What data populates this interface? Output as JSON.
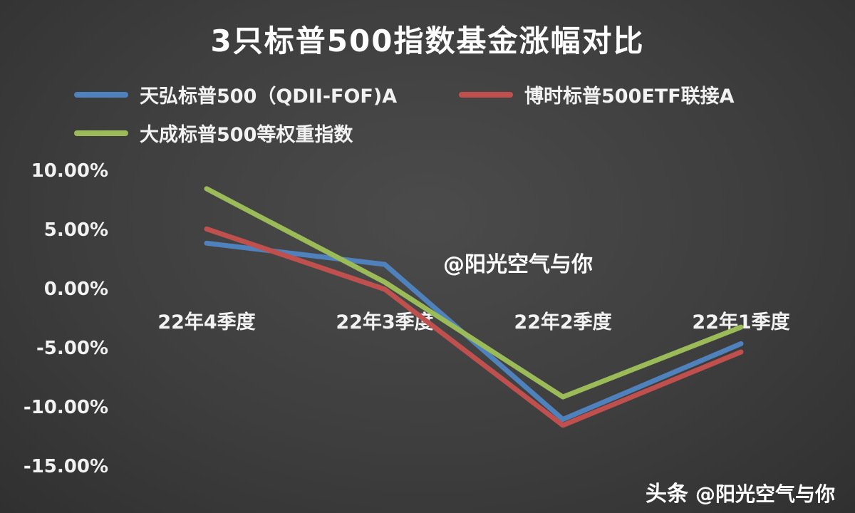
{
  "title": "3只标普500指数基金涨幅对比",
  "watermark_center": "@阳光空气与你",
  "footer": {
    "brand": "头条",
    "handle": "@阳光空气与你"
  },
  "chart_data": {
    "type": "line",
    "title": "3只标普500指数基金涨幅对比",
    "categories": [
      "22年4季度",
      "22年3季度",
      "22年2季度",
      "22年1季度"
    ],
    "series": [
      {
        "name": "天弘标普500（QDII-FOF)A",
        "color": "#4F81BD",
        "values": [
          3.9,
          2.1,
          -11.0,
          -4.6
        ]
      },
      {
        "name": "博时标普500ETF联接A",
        "color": "#C0504D",
        "values": [
          5.1,
          0.0,
          -11.5,
          -5.3
        ]
      },
      {
        "name": "大成标普500等权重指数",
        "color": "#9BBB59",
        "values": [
          8.5,
          0.6,
          -9.1,
          -3.2
        ]
      }
    ],
    "y_ticks": [
      10,
      5,
      0,
      -5,
      -10,
      -15
    ],
    "y_tick_labels": [
      "10.00%",
      "5.00%",
      "0.00%",
      "-5.00%",
      "-10.00%",
      "-15.00%"
    ],
    "ylim": [
      -15,
      10
    ],
    "xlabel": "",
    "ylabel": "",
    "grid": false,
    "legend_position": "top"
  }
}
